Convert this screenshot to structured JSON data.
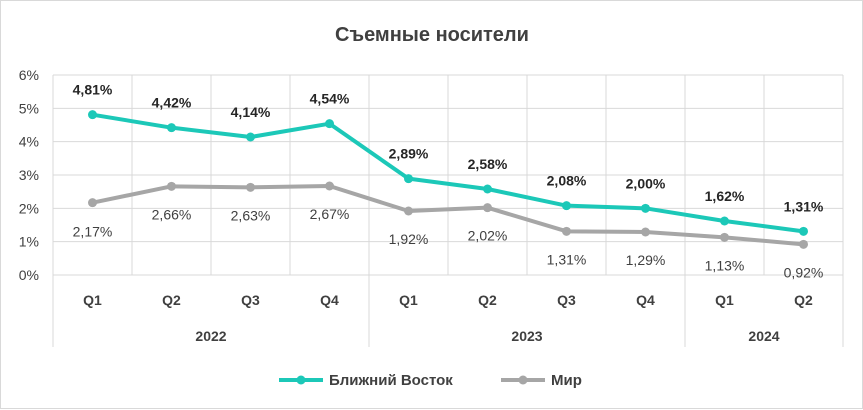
{
  "chart_data": {
    "type": "line",
    "title": "Съемные носители",
    "categories": [
      "Q1",
      "Q2",
      "Q3",
      "Q4",
      "Q1",
      "Q2",
      "Q3",
      "Q4",
      "Q1",
      "Q2"
    ],
    "year_groups": [
      {
        "label": "2022",
        "span": 4
      },
      {
        "label": "2023",
        "span": 4
      },
      {
        "label": "2024",
        "span": 2
      }
    ],
    "y_ticks": [
      "0%",
      "1%",
      "2%",
      "3%",
      "4%",
      "5%",
      "6%"
    ],
    "ylim": [
      0,
      6
    ],
    "grid": true,
    "legend_position": "bottom",
    "series": [
      {
        "name": "Ближний Восток",
        "color": "#1cc8b8",
        "values": [
          4.81,
          4.42,
          4.14,
          4.54,
          2.89,
          2.58,
          2.08,
          2.0,
          1.62,
          1.31
        ],
        "labels": [
          "4,81%",
          "4,42%",
          "4,14%",
          "4,54%",
          "2,89%",
          "2,58%",
          "2,08%",
          "2,00%",
          "1,62%",
          "1,31%"
        ]
      },
      {
        "name": "Мир",
        "color": "#a6a6a6",
        "values": [
          2.17,
          2.66,
          2.63,
          2.67,
          1.92,
          2.02,
          1.31,
          1.29,
          1.13,
          0.92
        ],
        "labels": [
          "2,17%",
          "2,66%",
          "2,63%",
          "2,67%",
          "1,92%",
          "2,02%",
          "1,31%",
          "1,29%",
          "1,13%",
          "0,92%"
        ]
      }
    ]
  }
}
